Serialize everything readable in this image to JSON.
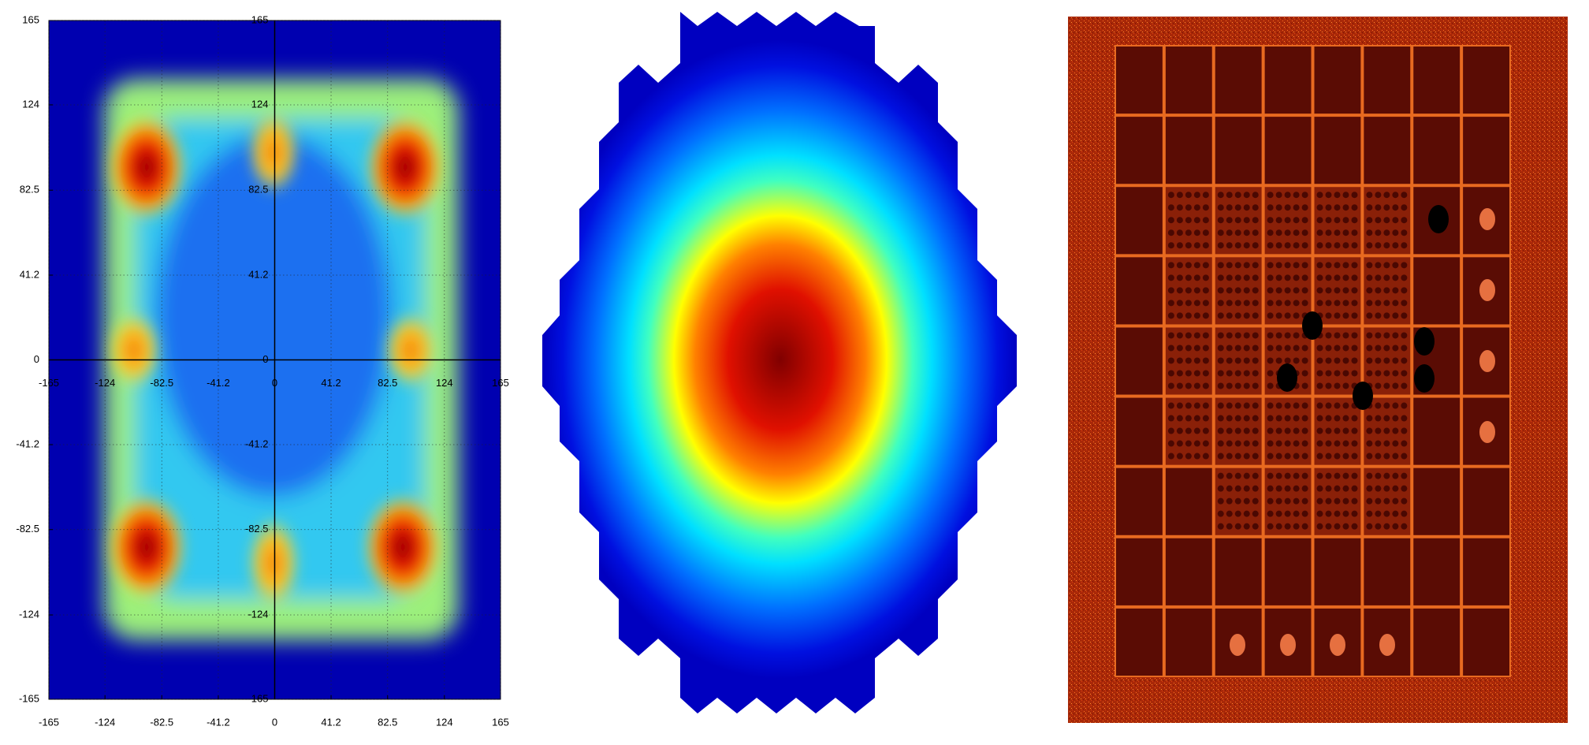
{
  "chart_data": {
    "type": "heatmap",
    "xlim": [
      -165,
      165
    ],
    "ylim": [
      -165,
      165
    ],
    "xticks": [
      -165,
      -124,
      -82.5,
      -41.2,
      0,
      41.2,
      82.5,
      124,
      165
    ],
    "yticks": [
      -165,
      -124,
      -82.5,
      -41.2,
      0,
      41.2,
      82.5,
      124,
      165
    ],
    "grid": true
  }
}
